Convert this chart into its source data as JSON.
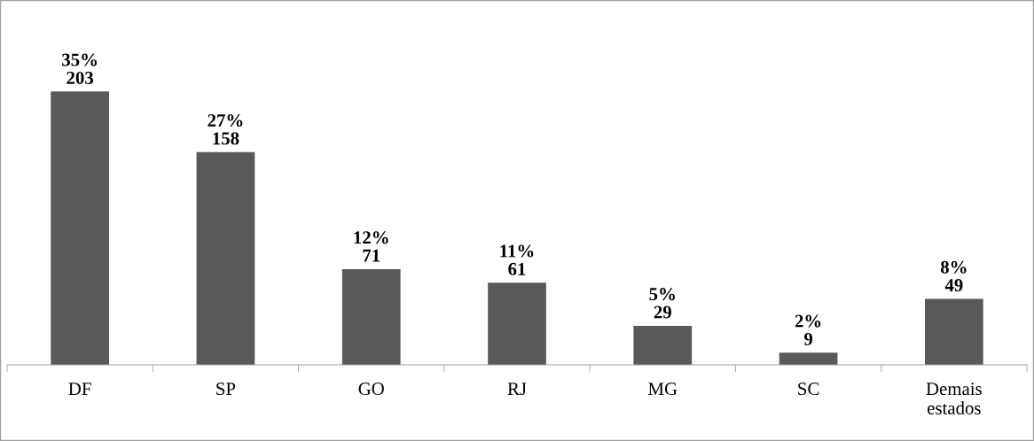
{
  "chart_data": {
    "type": "bar",
    "categories": [
      "DF",
      "SP",
      "GO",
      "RJ",
      "MG",
      "SC",
      "Demais\nestados"
    ],
    "values": [
      203,
      158,
      71,
      61,
      29,
      9,
      49
    ],
    "color": "#595959",
    "value_labels": [
      "35%\n203",
      "27%\n158",
      "12%\n71",
      "11%\n61",
      "5%\n29",
      "2%\n9",
      "8%\n49"
    ]
  }
}
